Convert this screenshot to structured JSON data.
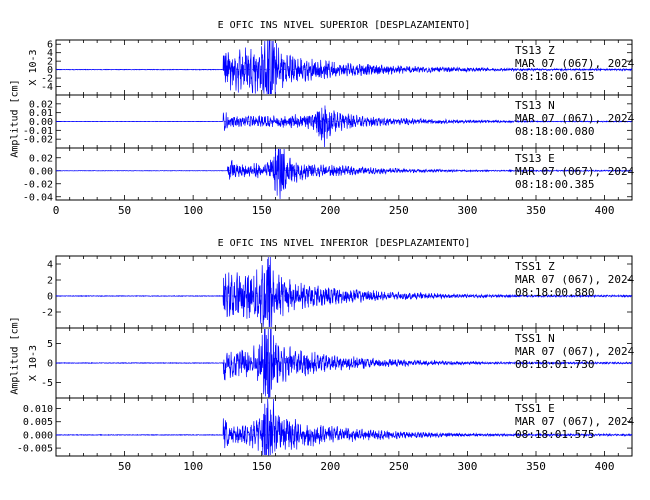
{
  "figures": [
    {
      "title": "E OFIC INS NIVEL SUPERIOR [DESPLAZAMIENTO]",
      "ylabel": "Amplitud [cm]",
      "xticks": [
        0,
        50,
        100,
        150,
        200,
        250,
        300,
        350,
        400
      ]
    },
    {
      "title": "E OFIC INS NIVEL INFERIOR [DESPLAZAMIENTO]",
      "ylabel": "Amplitud [cm]",
      "xticks": [
        50,
        100,
        150,
        200,
        250,
        300,
        350,
        400
      ]
    }
  ],
  "chart_data": [
    {
      "type": "line",
      "title": "E OFIC INS NIVEL SUPERIOR [DESPLAZAMIENTO]",
      "ylabel": "Amplitud [cm]",
      "xlim": [
        0,
        420
      ],
      "panels": [
        {
          "station": "TS13",
          "component": "Z",
          "date": "MAR 07 (067), 2024",
          "time": "08:18:00.615",
          "multiplier": "X 10-3",
          "ylim": [
            -6,
            7
          ],
          "yticks": [
            "6",
            "4",
            "2",
            "0",
            "-2",
            "-4"
          ],
          "onset": 122,
          "peak_time": 156,
          "peak_amp": 6.5,
          "env": [
            0.75,
            0.5
          ],
          "decay": 70,
          "color": "#0000ff"
        },
        {
          "station": "TS13",
          "component": "N",
          "date": "MAR 07 (067), 2024",
          "time": "08:18:00.080",
          "multiplier": "",
          "ylim": [
            -0.03,
            0.03
          ],
          "yticks": [
            "0.02",
            "0.01",
            "0.00",
            "-0.01",
            "-0.02"
          ],
          "onset": 122,
          "peak_time": 195,
          "peak_amp": 0.017,
          "env": [
            0.35,
            0.8
          ],
          "decay": 60,
          "color": "#0000ff"
        },
        {
          "station": "TS13",
          "component": "E",
          "date": "MAR 07 (067), 2024",
          "time": "08:18:00.385",
          "multiplier": "",
          "ylim": [
            -0.045,
            0.035
          ],
          "yticks": [
            "0.02",
            "0.00",
            "-0.02",
            "-0.04"
          ],
          "onset": 125,
          "peak_time": 162,
          "peak_amp": 0.03,
          "env": [
            0.3,
            0.6
          ],
          "decay": 55,
          "color": "#0000ff"
        }
      ]
    },
    {
      "type": "line",
      "title": "E OFIC INS NIVEL INFERIOR [DESPLAZAMIENTO]",
      "ylabel": "Amplitud [cm]",
      "xlim": [
        0,
        420
      ],
      "panels": [
        {
          "station": "TSS1",
          "component": "Z",
          "date": "MAR 07 (067), 2024",
          "time": "08:18:00.880",
          "multiplier": "",
          "ylim": [
            -4,
            5
          ],
          "yticks": [
            "4",
            "2",
            "0",
            "-2"
          ],
          "onset": 122,
          "peak_time": 154,
          "peak_amp": 3.8,
          "env": [
            0.7,
            0.45
          ],
          "decay": 65,
          "color": "#0000ff"
        },
        {
          "station": "TSS1",
          "component": "N",
          "date": "MAR 07 (067), 2024",
          "time": "08:18:01.730",
          "multiplier": "X 10-3",
          "ylim": [
            -9,
            9
          ],
          "yticks": [
            "5",
            "0",
            "-5"
          ],
          "onset": 122,
          "peak_time": 154,
          "peak_amp": 8,
          "env": [
            0.45,
            0.4
          ],
          "decay": 60,
          "color": "#0000ff"
        },
        {
          "station": "TSS1",
          "component": "E",
          "date": "MAR 07 (067), 2024",
          "time": "08:18:01.575",
          "multiplier": "",
          "ylim": [
            -0.008,
            0.014
          ],
          "yticks": [
            "0.010",
            "0.005",
            "0.000",
            "-0.005"
          ],
          "onset": 122,
          "peak_time": 154,
          "peak_amp": 0.012,
          "env": [
            0.3,
            0.45
          ],
          "decay": 60,
          "color": "#0000ff"
        }
      ]
    }
  ]
}
